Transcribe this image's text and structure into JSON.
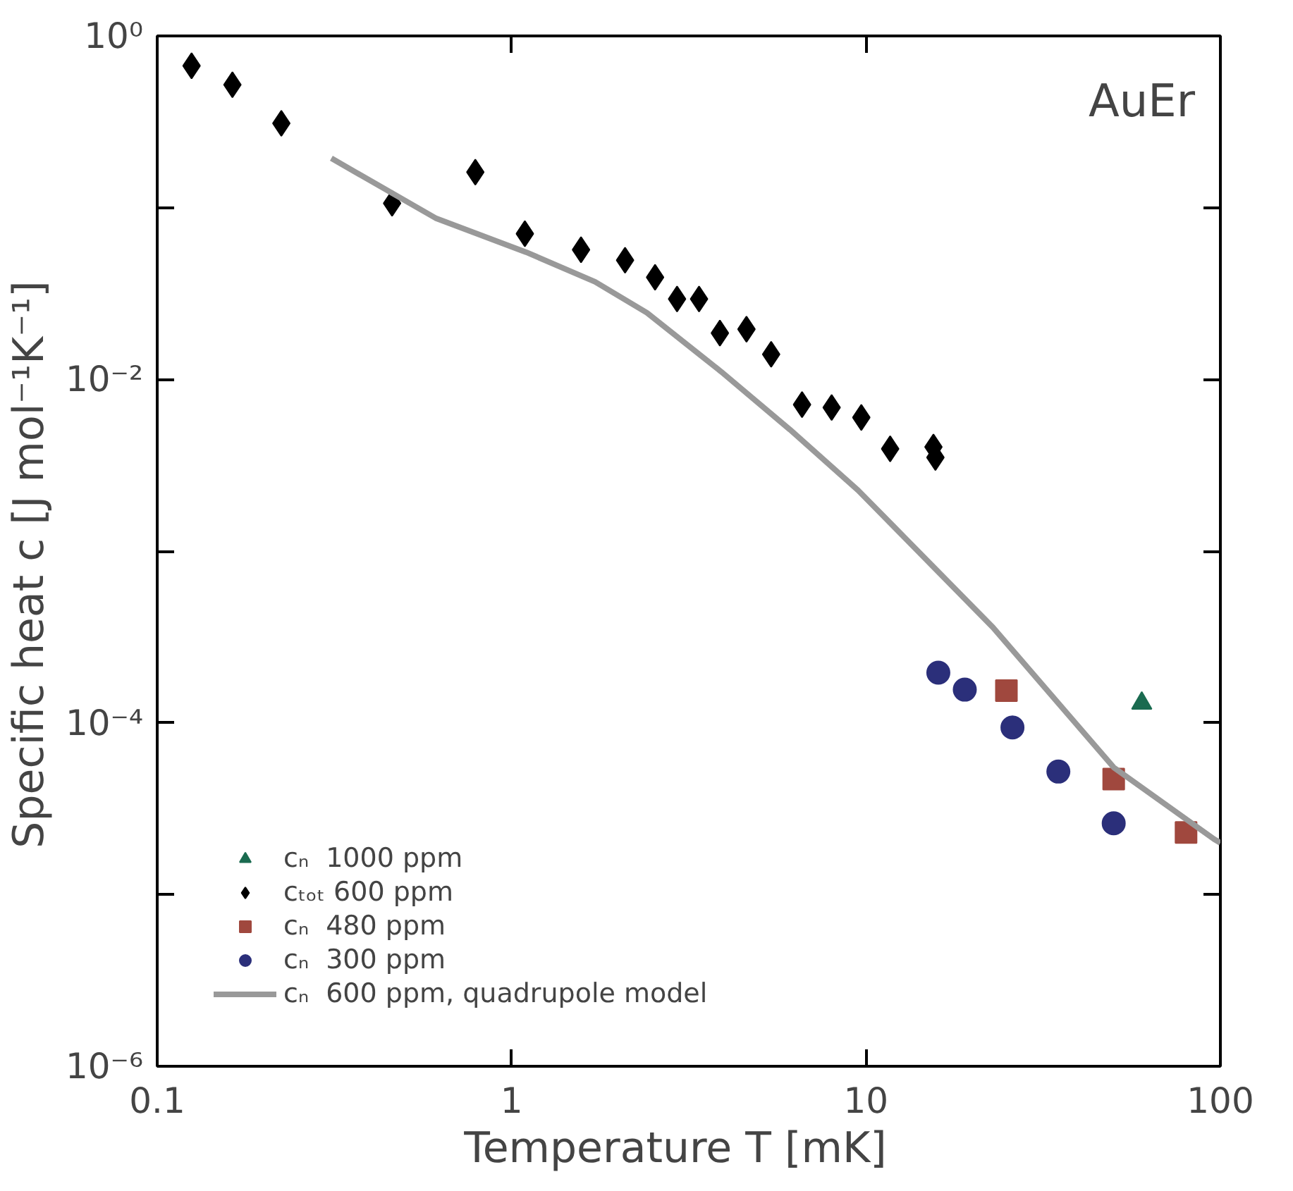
{
  "chart_data": {
    "type": "scatter",
    "xlabel": "Temperature  T  [mK]",
    "ylabel": "Specific heat  c  [J mol⁻¹K⁻¹]",
    "annotations": [
      "AuEr"
    ],
    "log": "xy",
    "grid": false,
    "legend": "bottom left",
    "xlim": [
      0.1,
      100
    ],
    "xticks": [
      0.1,
      1,
      10,
      100
    ],
    "ylim": [
      1e-06,
      1
    ],
    "yticks": [
      {
        "value": 1e-06,
        "label": "10⁻⁶"
      },
      {
        "value": 1e-05,
        "label": null
      },
      {
        "value": 0.0001,
        "label": "10⁻⁴"
      },
      {
        "value": 0.001,
        "label": null
      },
      {
        "value": 0.01,
        "label": "10⁻²"
      },
      {
        "value": 0.1,
        "label": null
      },
      {
        "value": 1,
        "label": "10⁰"
      }
    ],
    "series": [
      {
        "name": "cₙ  1000 ppm",
        "marker": "triangle",
        "color": "#1a6b50",
        "x": [
          60
        ],
        "values": [
          0.00013
        ]
      },
      {
        "name": "cₜₒₜ 600 ppm",
        "marker": "diamond",
        "color": "#000000",
        "x": [
          0.125,
          0.163,
          0.224,
          0.46,
          0.79,
          1.09,
          1.57,
          2.09,
          2.54,
          2.93,
          3.38,
          3.87,
          4.6,
          5.4,
          6.6,
          8.0,
          9.7,
          11.7,
          15.5,
          15.7
        ],
        "values": [
          0.67,
          0.52,
          0.31,
          0.106,
          0.161,
          0.0705,
          0.0569,
          0.0494,
          0.0393,
          0.0294,
          0.0294,
          0.0186,
          0.0196,
          0.014,
          0.00713,
          0.00686,
          0.006,
          0.00394,
          0.00404,
          0.00351
        ]
      },
      {
        "name": "cₙ  480 ppm",
        "marker": "square",
        "color": "#a0483e",
        "x": [
          24.9,
          50,
          80
        ],
        "values": [
          0.000154,
          4.7e-05,
          2.3e-05
        ]
      },
      {
        "name": "cₙ  300 ppm",
        "marker": "circle",
        "color": "#2b2f7a",
        "x": [
          16.0,
          19.0,
          25.9,
          34.9,
          50.0
        ],
        "values": [
          0.000196,
          0.000156,
          9.4e-05,
          5.2e-05,
          2.6e-05
        ]
      },
      {
        "name": "cₙ  600 ppm, quadrupole model",
        "type": "line",
        "line_style": "solid",
        "color": "#999999",
        "x": [
          0.31,
          0.61,
          1.1,
          1.72,
          2.41,
          3.9,
          6.1,
          9.5,
          22.8,
          50,
          96,
          100
        ],
        "values": [
          0.194,
          0.087,
          0.055,
          0.037,
          0.0244,
          0.0111,
          0.0051,
          0.00226,
          0.00036,
          5.5e-05,
          2.1e-05,
          2e-05
        ]
      }
    ]
  }
}
